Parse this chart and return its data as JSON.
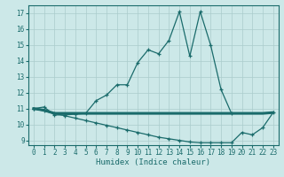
{
  "xlabel": "Humidex (Indice chaleur)",
  "bg_color": "#cce8e8",
  "grid_color": "#aacccc",
  "line_color": "#1a6b6b",
  "xlim": [
    -0.5,
    23.5
  ],
  "ylim": [
    8.7,
    17.5
  ],
  "xticks": [
    0,
    1,
    2,
    3,
    4,
    5,
    6,
    7,
    8,
    9,
    10,
    11,
    12,
    13,
    14,
    15,
    16,
    17,
    18,
    19,
    20,
    21,
    22,
    23
  ],
  "yticks": [
    9,
    10,
    11,
    12,
    13,
    14,
    15,
    16,
    17
  ],
  "series1_x": [
    0,
    1,
    2,
    3,
    4,
    5,
    6,
    7,
    8,
    9,
    10,
    11,
    12,
    13,
    14,
    15,
    16,
    17,
    18,
    19
  ],
  "series1_y": [
    11.0,
    11.1,
    10.6,
    10.6,
    10.65,
    10.7,
    11.5,
    11.85,
    12.5,
    12.5,
    13.9,
    14.7,
    14.45,
    15.3,
    17.1,
    14.3,
    17.1,
    15.0,
    12.2,
    10.7
  ],
  "series2_x": [
    0,
    1,
    2,
    3,
    4,
    5,
    6,
    7,
    8,
    9,
    10,
    11,
    12,
    13,
    14,
    15,
    16,
    17,
    18,
    19,
    20,
    21,
    22,
    23
  ],
  "series2_y": [
    11.0,
    10.9,
    10.7,
    10.7,
    10.7,
    10.7,
    10.7,
    10.7,
    10.7,
    10.7,
    10.7,
    10.7,
    10.7,
    10.7,
    10.7,
    10.7,
    10.7,
    10.7,
    10.7,
    10.7,
    10.7,
    10.7,
    10.7,
    10.75
  ],
  "series3_x": [
    0,
    1,
    2,
    3,
    4,
    5,
    6,
    7,
    8,
    9,
    10,
    11,
    12,
    13,
    14,
    15,
    16,
    17,
    18,
    19,
    20,
    21,
    22,
    23
  ],
  "series3_y": [
    11.0,
    10.85,
    10.7,
    10.55,
    10.4,
    10.25,
    10.1,
    9.95,
    9.8,
    9.65,
    9.5,
    9.35,
    9.2,
    9.1,
    9.0,
    8.9,
    8.85,
    8.85,
    8.85,
    8.85,
    9.5,
    9.35,
    9.8,
    10.75
  ]
}
